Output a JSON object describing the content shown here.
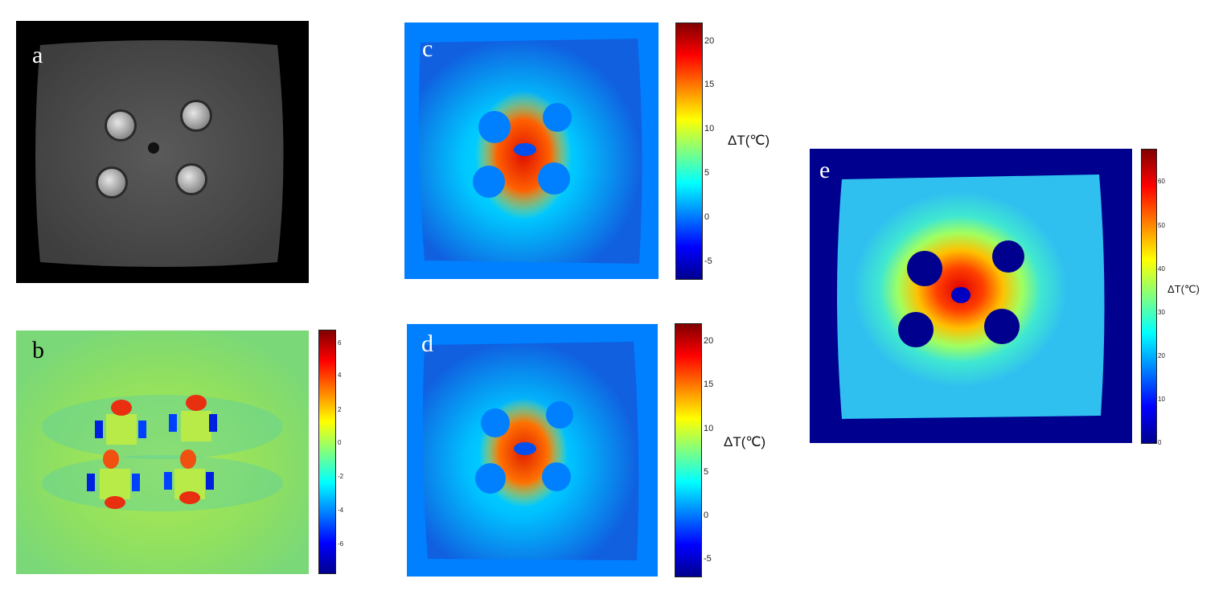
{
  "panels": {
    "a": {
      "label": "a"
    },
    "b": {
      "label": "b",
      "colorbar_ticks": [
        "6",
        "4",
        "2",
        "0",
        "-2",
        "-4",
        "-6"
      ]
    },
    "c": {
      "label": "c",
      "colorbar_ticks": [
        "20",
        "15",
        "10",
        "5",
        "0",
        "-5"
      ],
      "unit": "ΔT(℃)"
    },
    "d": {
      "label": "d",
      "colorbar_ticks": [
        "20",
        "15",
        "10",
        "5",
        "0",
        "-5"
      ],
      "unit": "ΔT(℃)"
    },
    "e": {
      "label": "e",
      "colorbar_ticks": [
        "60",
        "50",
        "40",
        "30",
        "20",
        "10",
        "0"
      ],
      "unit": "ΔT(℃)"
    }
  },
  "colors": {
    "jet_dark_blue": "#00008f",
    "jet_blue": "#0080ff",
    "jet_cyan": "#00ffff",
    "jet_yellow": "#ffff00",
    "jet_red": "#ff0000",
    "jet_dark_red": "#800000"
  }
}
